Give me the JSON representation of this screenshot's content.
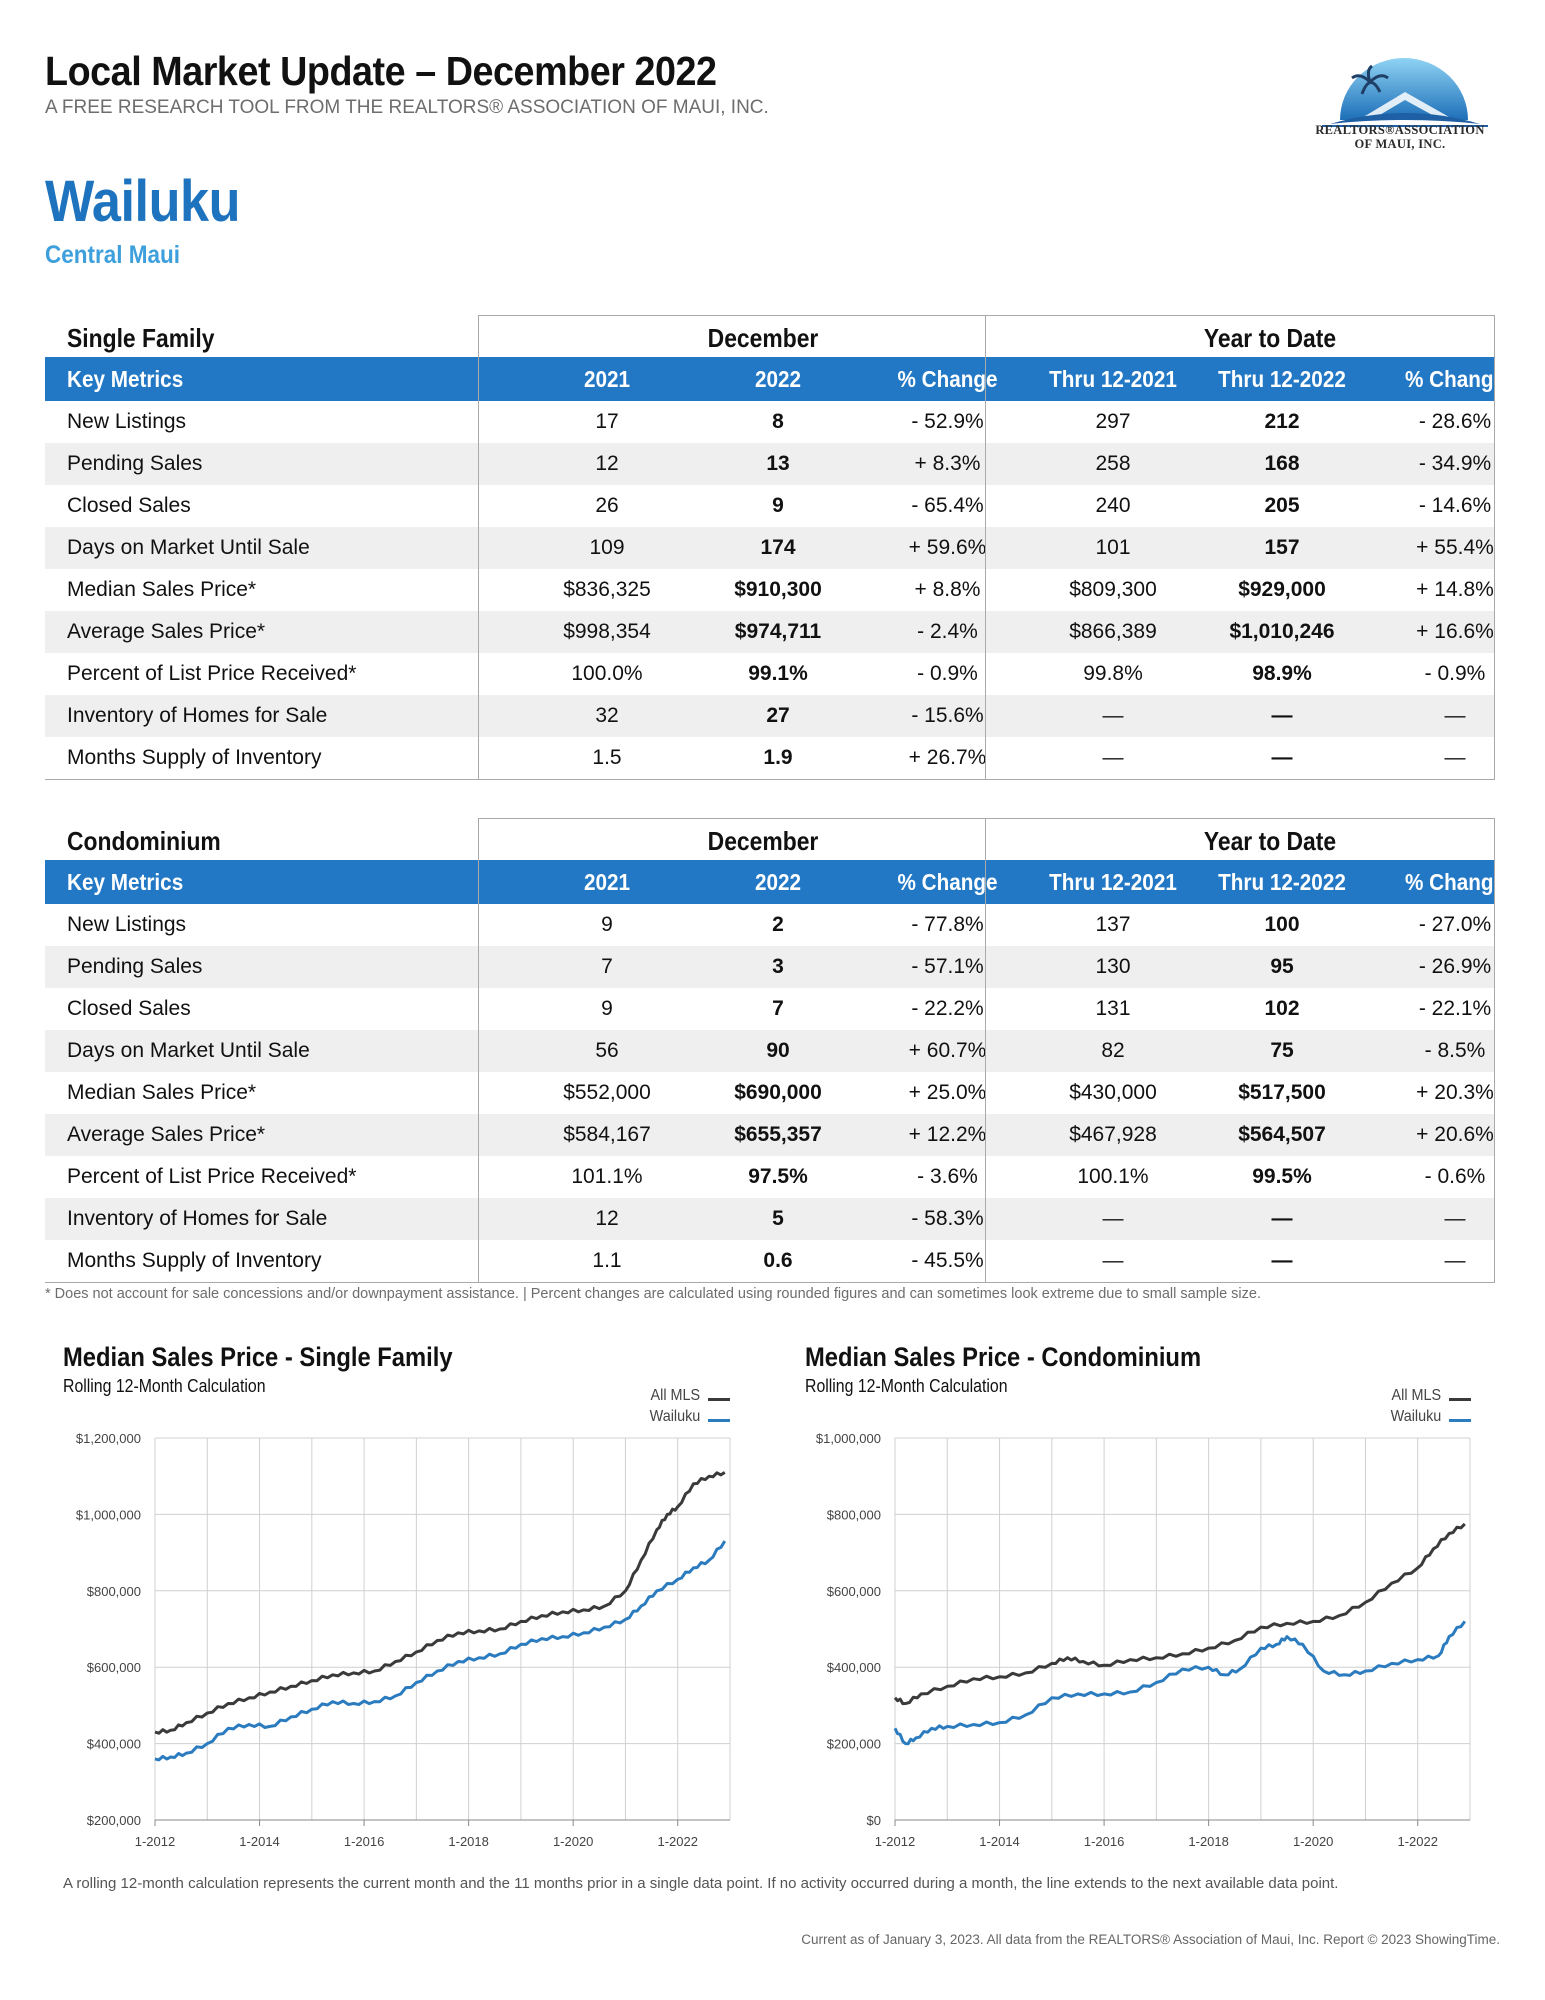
{
  "header": {
    "title": "Local Market Update – December 2022",
    "subtitle": "A FREE RESEARCH TOOL FROM THE REALTORS® ASSOCIATION OF MAUI, INC.",
    "logo_line1": "REALTORS®ASSOCIATION",
    "logo_line2": "OF MAUI, INC."
  },
  "area": {
    "name": "Wailuku",
    "region": "Central Maui"
  },
  "columns": {
    "december": "December",
    "ytd": "Year to Date",
    "key_metrics": "Key Metrics",
    "y2021": "2021",
    "y2022": "2022",
    "pct_change": "% Change",
    "thru2021": "Thru 12-2021",
    "thru2022": "Thru 12-2022"
  },
  "single_family": {
    "section": "Single Family",
    "rows": [
      [
        "New Listings",
        "17",
        "8",
        "- 52.9%",
        "297",
        "212",
        "- 28.6%"
      ],
      [
        "Pending Sales",
        "12",
        "13",
        "+ 8.3%",
        "258",
        "168",
        "- 34.9%"
      ],
      [
        "Closed Sales",
        "26",
        "9",
        "- 65.4%",
        "240",
        "205",
        "- 14.6%"
      ],
      [
        "Days on Market Until Sale",
        "109",
        "174",
        "+ 59.6%",
        "101",
        "157",
        "+ 55.4%"
      ],
      [
        "Median Sales Price*",
        "$836,325",
        "$910,300",
        "+ 8.8%",
        "$809,300",
        "$929,000",
        "+ 14.8%"
      ],
      [
        "Average Sales Price*",
        "$998,354",
        "$974,711",
        "- 2.4%",
        "$866,389",
        "$1,010,246",
        "+ 16.6%"
      ],
      [
        "Percent of List Price Received*",
        "100.0%",
        "99.1%",
        "- 0.9%",
        "99.8%",
        "98.9%",
        "- 0.9%"
      ],
      [
        "Inventory of Homes for Sale",
        "32",
        "27",
        "- 15.6%",
        "—",
        "—",
        "—"
      ],
      [
        "Months Supply of Inventory",
        "1.5",
        "1.9",
        "+ 26.7%",
        "—",
        "—",
        "—"
      ]
    ]
  },
  "condominium": {
    "section": "Condominium",
    "rows": [
      [
        "New Listings",
        "9",
        "2",
        "- 77.8%",
        "137",
        "100",
        "- 27.0%"
      ],
      [
        "Pending Sales",
        "7",
        "3",
        "- 57.1%",
        "130",
        "95",
        "- 26.9%"
      ],
      [
        "Closed Sales",
        "9",
        "7",
        "- 22.2%",
        "131",
        "102",
        "- 22.1%"
      ],
      [
        "Days on Market Until Sale",
        "56",
        "90",
        "+ 60.7%",
        "82",
        "75",
        "- 8.5%"
      ],
      [
        "Median Sales Price*",
        "$552,000",
        "$690,000",
        "+ 25.0%",
        "$430,000",
        "$517,500",
        "+ 20.3%"
      ],
      [
        "Average Sales Price*",
        "$584,167",
        "$655,357",
        "+ 12.2%",
        "$467,928",
        "$564,507",
        "+ 20.6%"
      ],
      [
        "Percent of List Price Received*",
        "101.1%",
        "97.5%",
        "- 3.6%",
        "100.1%",
        "99.5%",
        "- 0.6%"
      ],
      [
        "Inventory of Homes for Sale",
        "12",
        "5",
        "- 58.3%",
        "—",
        "—",
        "—"
      ],
      [
        "Months Supply of Inventory",
        "1.1",
        "0.6",
        "- 45.5%",
        "—",
        "—",
        "—"
      ]
    ]
  },
  "footnote": "* Does not account for sale concessions and/or downpayment assistance. | Percent changes are calculated using rounded figures and can sometimes look extreme due to small sample size.",
  "chart_data": [
    {
      "type": "line",
      "title": "Median Sales Price - Single Family",
      "subtitle": "Rolling 12-Month Calculation",
      "ylim": [
        200000,
        1200000
      ],
      "yticks": [
        "$200,000",
        "$400,000",
        "$600,000",
        "$800,000",
        "$1,000,000",
        "$1,200,000"
      ],
      "ytick_values": [
        200000,
        400000,
        600000,
        800000,
        1000000,
        1200000
      ],
      "xlim": [
        2012,
        2023
      ],
      "xticks": [
        "1-2012",
        "1-2014",
        "1-2016",
        "1-2018",
        "1-2020",
        "1-2022"
      ],
      "xtick_values": [
        2012,
        2014,
        2016,
        2018,
        2020,
        2022
      ],
      "grid": true,
      "legend": "top-right",
      "series": [
        {
          "name": "All MLS",
          "color": "#3a3a3a",
          "x": [
            2012,
            2012.3,
            2012.6,
            2013,
            2013.4,
            2013.8,
            2014.2,
            2014.6,
            2015,
            2015.4,
            2015.8,
            2016.2,
            2016.6,
            2017,
            2017.4,
            2017.8,
            2018.2,
            2018.6,
            2019,
            2019.4,
            2019.8,
            2020.2,
            2020.6,
            2021,
            2021.3,
            2021.6,
            2021.8,
            2022,
            2022.3,
            2022.6,
            2022.9
          ],
          "values": [
            430000,
            435000,
            455000,
            480000,
            505000,
            520000,
            535000,
            550000,
            565000,
            580000,
            585000,
            590000,
            615000,
            640000,
            670000,
            690000,
            695000,
            700000,
            720000,
            735000,
            745000,
            750000,
            760000,
            800000,
            880000,
            960000,
            1000000,
            1020000,
            1080000,
            1100000,
            1110000
          ]
        },
        {
          "name": "Wailuku",
          "color": "#2b7bbf",
          "x": [
            2012,
            2012.3,
            2012.6,
            2013,
            2013.4,
            2013.8,
            2014.2,
            2014.6,
            2015,
            2015.4,
            2015.8,
            2016.2,
            2016.6,
            2017,
            2017.4,
            2017.8,
            2018.2,
            2018.6,
            2019,
            2019.4,
            2019.8,
            2020.2,
            2020.6,
            2021,
            2021.3,
            2021.6,
            2022,
            2022.3,
            2022.6,
            2022.9
          ],
          "values": [
            360000,
            365000,
            375000,
            400000,
            440000,
            450000,
            445000,
            470000,
            490000,
            510000,
            505000,
            510000,
            525000,
            560000,
            590000,
            615000,
            625000,
            635000,
            660000,
            675000,
            680000,
            690000,
            705000,
            725000,
            760000,
            800000,
            830000,
            860000,
            880000,
            930000
          ]
        }
      ]
    },
    {
      "type": "line",
      "title": "Median Sales Price - Condominium",
      "subtitle": "Rolling 12-Month Calculation",
      "ylim": [
        0,
        1000000
      ],
      "yticks": [
        "$0",
        "$200,000",
        "$400,000",
        "$600,000",
        "$800,000",
        "$1,000,000"
      ],
      "ytick_values": [
        0,
        200000,
        400000,
        600000,
        800000,
        1000000
      ],
      "xlim": [
        2012,
        2023
      ],
      "xticks": [
        "1-2012",
        "1-2014",
        "1-2016",
        "1-2018",
        "1-2020",
        "1-2022"
      ],
      "xtick_values": [
        2012,
        2014,
        2016,
        2018,
        2020,
        2022
      ],
      "grid": true,
      "legend": "top-right",
      "series": [
        {
          "name": "All MLS",
          "color": "#3a3a3a",
          "x": [
            2012,
            2012.2,
            2012.5,
            2013,
            2013.5,
            2014,
            2014.5,
            2015,
            2015.3,
            2015.6,
            2016,
            2016.5,
            2017,
            2017.5,
            2018,
            2018.5,
            2019,
            2019.5,
            2020,
            2020.5,
            2021,
            2021.5,
            2022,
            2022.3,
            2022.6,
            2022.9
          ],
          "values": [
            320000,
            305000,
            330000,
            350000,
            370000,
            375000,
            385000,
            410000,
            425000,
            415000,
            405000,
            420000,
            425000,
            435000,
            450000,
            470000,
            505000,
            515000,
            520000,
            535000,
            570000,
            620000,
            660000,
            710000,
            750000,
            775000
          ]
        },
        {
          "name": "Wailuku",
          "color": "#2b7bbf",
          "x": [
            2012,
            2012.2,
            2012.4,
            2012.7,
            2013,
            2013.5,
            2014,
            2014.5,
            2015,
            2015.5,
            2016,
            2016.5,
            2017,
            2017.5,
            2018,
            2018.3,
            2018.6,
            2019,
            2019.3,
            2019.5,
            2019.8,
            2020.2,
            2020.6,
            2021,
            2021.5,
            2022,
            2022.4,
            2022.6,
            2022.9
          ],
          "values": [
            240000,
            200000,
            215000,
            240000,
            245000,
            250000,
            255000,
            275000,
            320000,
            330000,
            330000,
            335000,
            360000,
            395000,
            400000,
            380000,
            395000,
            450000,
            460000,
            480000,
            460000,
            390000,
            380000,
            390000,
            410000,
            420000,
            430000,
            480000,
            520000
          ]
        }
      ]
    }
  ],
  "chart_note": "A rolling 12-month calculation represents the current month and the 11 months prior in a single data point. If no activity occurred during a month, the line extends to the next available data point.",
  "copyright": "Current as of January 3, 2023. All data from the REALTORS® Association of Maui, Inc. Report © 2023 ShowingTime."
}
